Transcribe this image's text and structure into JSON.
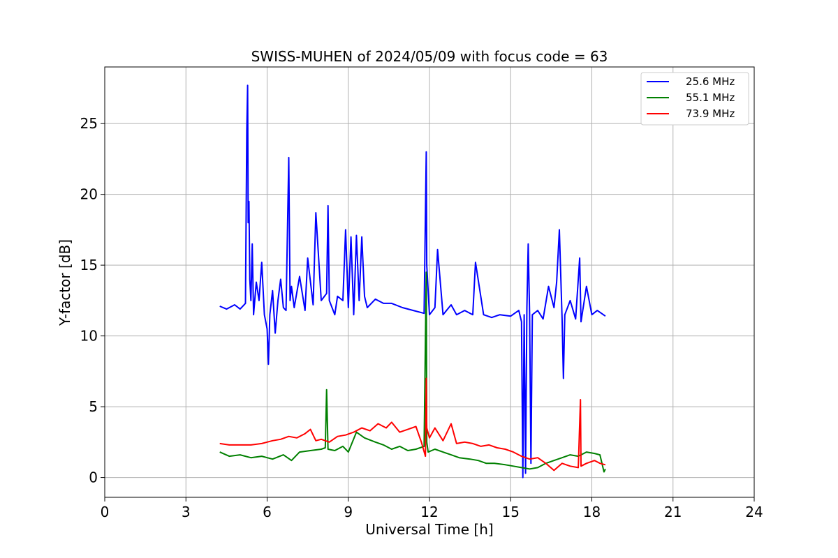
{
  "chart_data": {
    "type": "line",
    "title": "SWISS-MUHEN of 2024/05/09 with focus code = 63",
    "xlabel": "Universal Time [h]",
    "ylabel": "Y-factor [dB]",
    "xlim": [
      0,
      24
    ],
    "ylim": [
      -1.4,
      29
    ],
    "xticks": [
      0,
      3,
      6,
      9,
      12,
      15,
      18,
      21,
      24
    ],
    "yticks": [
      0,
      5,
      10,
      15,
      20,
      25
    ],
    "grid": true,
    "legend_position": "top-right",
    "series": [
      {
        "name": "25.6 MHz",
        "color": "#0000ff",
        "x": [
          4.25,
          4.5,
          4.8,
          5.0,
          5.2,
          5.25,
          5.28,
          5.3,
          5.33,
          5.36,
          5.4,
          5.45,
          5.5,
          5.6,
          5.7,
          5.8,
          5.9,
          6.0,
          6.05,
          6.1,
          6.2,
          6.3,
          6.4,
          6.5,
          6.6,
          6.7,
          6.8,
          6.85,
          6.9,
          7.0,
          7.2,
          7.4,
          7.5,
          7.7,
          7.8,
          8.0,
          8.2,
          8.25,
          8.3,
          8.5,
          8.6,
          8.8,
          8.9,
          9.0,
          9.1,
          9.2,
          9.3,
          9.4,
          9.5,
          9.6,
          9.7,
          10.0,
          10.3,
          10.6,
          11.0,
          11.4,
          11.8,
          11.88,
          11.9,
          12.0,
          12.2,
          12.3,
          12.5,
          12.8,
          13.0,
          13.3,
          13.6,
          13.7,
          14.0,
          14.3,
          14.6,
          15.0,
          15.3,
          15.4,
          15.45,
          15.5,
          15.55,
          15.6,
          15.65,
          15.7,
          15.75,
          15.8,
          16.0,
          16.2,
          16.4,
          16.6,
          16.7,
          16.8,
          16.9,
          16.95,
          17.0,
          17.2,
          17.4,
          17.55,
          17.6,
          17.8,
          18.0,
          18.2,
          18.5
        ],
        "y": [
          12.1,
          11.9,
          12.2,
          11.9,
          12.3,
          24.5,
          27.7,
          18.0,
          19.5,
          14.0,
          12.5,
          16.5,
          11.5,
          13.8,
          12.5,
          15.2,
          11.5,
          10.5,
          8.0,
          11.5,
          13.2,
          10.2,
          12.5,
          14.0,
          12.0,
          11.8,
          22.6,
          12.5,
          13.5,
          12.0,
          14.2,
          11.8,
          15.5,
          12.2,
          18.7,
          12.5,
          13.0,
          19.2,
          12.5,
          11.5,
          12.8,
          12.5,
          17.5,
          12.0,
          17.0,
          11.5,
          17.1,
          12.5,
          17.0,
          12.8,
          12.0,
          12.6,
          12.3,
          12.3,
          12.0,
          11.8,
          11.6,
          23.0,
          15.0,
          11.5,
          12.0,
          16.1,
          11.5,
          12.2,
          11.5,
          11.8,
          11.5,
          15.2,
          11.5,
          11.3,
          11.5,
          11.4,
          11.8,
          11.0,
          0.0,
          11.5,
          0.3,
          12.0,
          16.5,
          11.5,
          1.0,
          11.5,
          11.8,
          11.2,
          13.5,
          12.0,
          13.8,
          17.5,
          11.2,
          7.0,
          11.5,
          12.5,
          11.2,
          15.5,
          11.0,
          13.5,
          11.5,
          11.8,
          11.4
        ]
      },
      {
        "name": "55.1 MHz",
        "color": "#008000",
        "x": [
          4.25,
          4.6,
          5.0,
          5.4,
          5.8,
          6.2,
          6.6,
          6.9,
          7.2,
          7.6,
          8.0,
          8.15,
          8.2,
          8.25,
          8.5,
          8.8,
          9.0,
          9.3,
          9.6,
          10.0,
          10.3,
          10.6,
          10.9,
          11.2,
          11.5,
          11.8,
          11.88,
          11.9,
          11.95,
          12.2,
          12.5,
          12.8,
          13.1,
          13.5,
          13.8,
          14.1,
          14.4,
          14.8,
          15.1,
          15.4,
          15.7,
          16.0,
          16.3,
          16.6,
          16.9,
          17.2,
          17.5,
          17.8,
          18.1,
          18.3,
          18.45,
          18.5
        ],
        "y": [
          1.8,
          1.5,
          1.6,
          1.4,
          1.5,
          1.3,
          1.6,
          1.2,
          1.8,
          1.9,
          2.0,
          2.1,
          6.2,
          2.0,
          1.9,
          2.2,
          1.8,
          3.2,
          2.8,
          2.5,
          2.3,
          2.0,
          2.2,
          1.9,
          2.0,
          2.2,
          14.5,
          2.5,
          1.8,
          2.0,
          1.8,
          1.6,
          1.4,
          1.3,
          1.2,
          1.0,
          1.0,
          0.9,
          0.8,
          0.7,
          0.6,
          0.7,
          1.0,
          1.2,
          1.4,
          1.6,
          1.5,
          1.8,
          1.7,
          1.6,
          0.4,
          0.6
        ]
      },
      {
        "name": "73.9 MHz",
        "color": "#ff0000",
        "x": [
          4.25,
          4.6,
          5.0,
          5.4,
          5.8,
          6.2,
          6.5,
          6.8,
          7.1,
          7.4,
          7.6,
          7.8,
          8.0,
          8.3,
          8.6,
          8.9,
          9.2,
          9.5,
          9.8,
          10.1,
          10.4,
          10.6,
          10.9,
          11.2,
          11.5,
          11.7,
          11.85,
          11.88,
          11.9,
          12.0,
          12.2,
          12.5,
          12.8,
          13.0,
          13.3,
          13.6,
          13.9,
          14.2,
          14.5,
          14.8,
          15.1,
          15.4,
          15.7,
          16.0,
          16.3,
          16.6,
          16.9,
          17.2,
          17.5,
          17.58,
          17.6,
          17.8,
          18.1,
          18.3,
          18.5
        ],
        "y": [
          2.4,
          2.3,
          2.3,
          2.3,
          2.4,
          2.6,
          2.7,
          2.9,
          2.8,
          3.1,
          3.4,
          2.6,
          2.7,
          2.5,
          2.9,
          3.0,
          3.2,
          3.5,
          3.3,
          3.8,
          3.5,
          3.9,
          3.2,
          3.4,
          3.6,
          2.5,
          1.5,
          7.0,
          3.5,
          2.8,
          3.5,
          2.6,
          3.8,
          2.4,
          2.5,
          2.4,
          2.2,
          2.3,
          2.1,
          2.0,
          1.8,
          1.5,
          1.3,
          1.4,
          1.0,
          0.5,
          1.0,
          0.8,
          0.7,
          5.5,
          0.8,
          1.0,
          1.2,
          1.0,
          0.9
        ]
      }
    ]
  }
}
